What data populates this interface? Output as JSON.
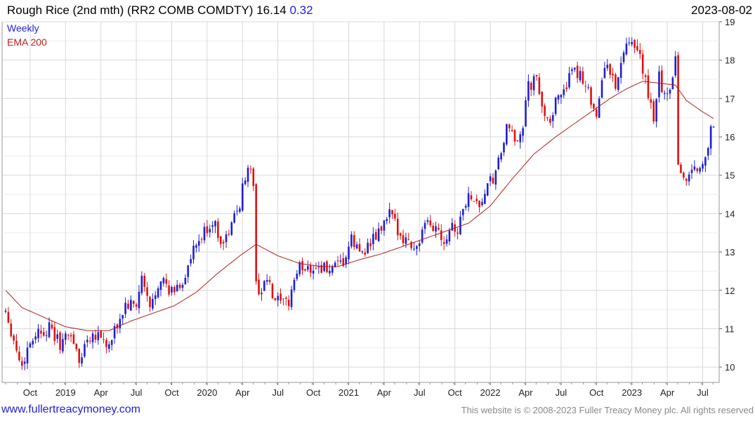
{
  "header": {
    "title": "Rough Rice (2nd mth) (RR2 COMB COMDTY) 16.14",
    "change": "0.32",
    "date": "2023-08-02"
  },
  "legend": {
    "series1": "Weekly",
    "series2": "EMA 200"
  },
  "footer": {
    "site": "www.fullertreacymoney.com",
    "copyright": "This website is © 2008-2023 Fuller Treacy Money plc. All rights reserved"
  },
  "colors": {
    "up": "#1f1fd0",
    "down": "#e01010",
    "ema": "#b02020",
    "grid": "#d8d8d8"
  },
  "chart_data": {
    "type": "line",
    "title": "Rough Rice (2nd mth) (RR2 COMB COMDTY) 16.14 0.32",
    "ylim": [
      9.6,
      19.0
    ],
    "y_ticks": [
      10,
      11,
      12,
      13,
      14,
      15,
      16,
      17,
      18,
      19
    ],
    "x_tick_labels": [
      "Oct",
      "2019",
      "Apr",
      "Jul",
      "Oct",
      "2020",
      "Apr",
      "Jul",
      "Oct",
      "2021",
      "Apr",
      "Jul",
      "Oct",
      "2022",
      "Apr",
      "Jul",
      "Oct",
      "2023",
      "Apr",
      "Jul"
    ],
    "x_tick_weeks": [
      9,
      22,
      35,
      48,
      61,
      74,
      87,
      100,
      113,
      126,
      139,
      152,
      165,
      178,
      191,
      204,
      217,
      230,
      243,
      256
    ],
    "grid": true,
    "series": [
      {
        "name": "Weekly",
        "style": "candlestick",
        "anchors": [
          [
            0,
            11.5
          ],
          [
            3,
            10.7
          ],
          [
            6,
            10.0
          ],
          [
            8,
            10.5
          ],
          [
            11,
            10.9
          ],
          [
            16,
            11.0
          ],
          [
            20,
            10.6
          ],
          [
            24,
            10.9
          ],
          [
            27,
            10.1
          ],
          [
            30,
            10.8
          ],
          [
            34,
            10.9
          ],
          [
            38,
            10.5
          ],
          [
            40,
            10.9
          ],
          [
            44,
            11.6
          ],
          [
            48,
            11.6
          ],
          [
            50,
            12.3
          ],
          [
            53,
            11.5
          ],
          [
            57,
            12.4
          ],
          [
            60,
            11.9
          ],
          [
            65,
            12.2
          ],
          [
            69,
            13.0
          ],
          [
            73,
            13.5
          ],
          [
            76,
            13.8
          ],
          [
            80,
            13.2
          ],
          [
            83,
            13.7
          ],
          [
            86,
            14.3
          ],
          [
            89,
            15.3
          ],
          [
            91,
            14.8
          ],
          [
            92,
            12.1
          ],
          [
            94,
            12.0
          ],
          [
            96,
            12.3
          ],
          [
            98,
            11.8
          ],
          [
            100,
            11.7
          ],
          [
            102,
            11.6
          ],
          [
            104,
            11.7
          ],
          [
            106,
            12.3
          ],
          [
            108,
            12.6
          ],
          [
            112,
            12.6
          ],
          [
            116,
            12.6
          ],
          [
            120,
            12.5
          ],
          [
            124,
            12.7
          ],
          [
            127,
            13.3
          ],
          [
            130,
            13.0
          ],
          [
            134,
            13.2
          ],
          [
            138,
            13.6
          ],
          [
            141,
            14.0
          ],
          [
            143,
            13.7
          ],
          [
            146,
            13.4
          ],
          [
            149,
            13.2
          ],
          [
            151,
            13.1
          ],
          [
            153,
            13.5
          ],
          [
            155,
            13.7
          ],
          [
            159,
            13.6
          ],
          [
            161,
            13.3
          ],
          [
            164,
            13.8
          ],
          [
            166,
            13.5
          ],
          [
            168,
            14.2
          ],
          [
            171,
            14.5
          ],
          [
            174,
            14.2
          ],
          [
            177,
            14.7
          ],
          [
            180,
            15.0
          ],
          [
            184,
            16.2
          ],
          [
            187,
            15.9
          ],
          [
            190,
            16.3
          ],
          [
            192,
            17.3
          ],
          [
            195,
            17.5
          ],
          [
            197,
            16.7
          ],
          [
            200,
            16.5
          ],
          [
            204,
            17.2
          ],
          [
            208,
            17.6
          ],
          [
            211,
            17.7
          ],
          [
            214,
            17.2
          ],
          [
            217,
            16.6
          ],
          [
            219,
            17.4
          ],
          [
            221,
            18.0
          ],
          [
            224,
            17.2
          ],
          [
            226,
            18.0
          ],
          [
            229,
            18.4
          ],
          [
            232,
            18.2
          ],
          [
            234,
            17.8
          ],
          [
            236,
            17.0
          ],
          [
            238,
            16.5
          ],
          [
            240,
            17.6
          ],
          [
            242,
            17.0
          ],
          [
            244,
            17.3
          ],
          [
            246,
            18.1
          ],
          [
            247,
            15.3
          ],
          [
            249,
            14.9
          ],
          [
            251,
            15.0
          ],
          [
            253,
            15.3
          ],
          [
            255,
            15.1
          ],
          [
            257,
            15.6
          ],
          [
            259,
            16.1
          ],
          [
            260,
            16.14
          ]
        ]
      },
      {
        "name": "EMA 200",
        "style": "line",
        "anchors": [
          [
            0,
            12.0
          ],
          [
            6,
            11.55
          ],
          [
            14,
            11.3
          ],
          [
            22,
            11.05
          ],
          [
            30,
            10.95
          ],
          [
            38,
            10.95
          ],
          [
            46,
            11.2
          ],
          [
            54,
            11.4
          ],
          [
            62,
            11.6
          ],
          [
            70,
            11.95
          ],
          [
            78,
            12.45
          ],
          [
            86,
            12.9
          ],
          [
            92,
            13.2
          ],
          [
            100,
            12.9
          ],
          [
            108,
            12.7
          ],
          [
            116,
            12.62
          ],
          [
            122,
            12.62
          ],
          [
            130,
            12.8
          ],
          [
            138,
            12.95
          ],
          [
            146,
            13.15
          ],
          [
            152,
            13.3
          ],
          [
            158,
            13.45
          ],
          [
            164,
            13.6
          ],
          [
            170,
            13.75
          ],
          [
            178,
            14.2
          ],
          [
            186,
            14.9
          ],
          [
            194,
            15.55
          ],
          [
            202,
            16.0
          ],
          [
            210,
            16.4
          ],
          [
            216,
            16.7
          ],
          [
            222,
            17.0
          ],
          [
            228,
            17.25
          ],
          [
            234,
            17.45
          ],
          [
            240,
            17.4
          ],
          [
            246,
            17.35
          ],
          [
            250,
            16.95
          ],
          [
            256,
            16.65
          ],
          [
            260,
            16.48
          ]
        ]
      }
    ]
  }
}
